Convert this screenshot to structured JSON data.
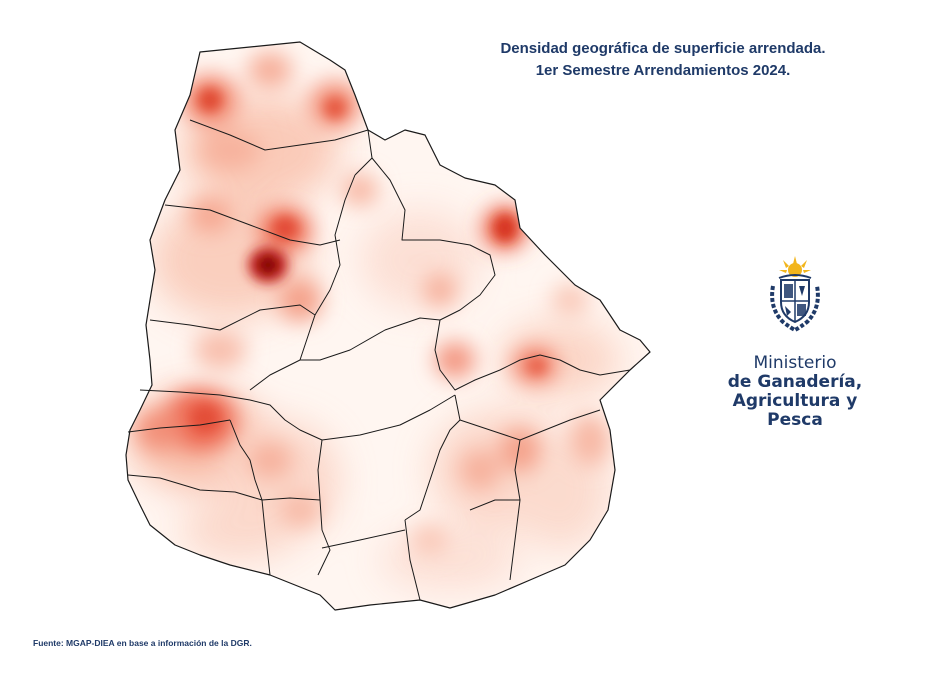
{
  "title": {
    "line1": "Densidad geográfica de superficie arrendada.",
    "line2": "1er Semestre Arrendamientos 2024."
  },
  "ministry": {
    "line1": "Ministerio",
    "line2": "de Ganadería,",
    "line3": "Agricultura y Pesca",
    "emblem": "uruguay-coat-of-arms-icon"
  },
  "source": "Fuente: MGAP-DIEA en base a información de la DGR.",
  "map": {
    "country": "Uruguay",
    "layer": "heatmap",
    "colors": {
      "low": "#fde4da",
      "mid": "#f26b50",
      "high": "#7a0000",
      "border": "#1a1a1a"
    }
  }
}
